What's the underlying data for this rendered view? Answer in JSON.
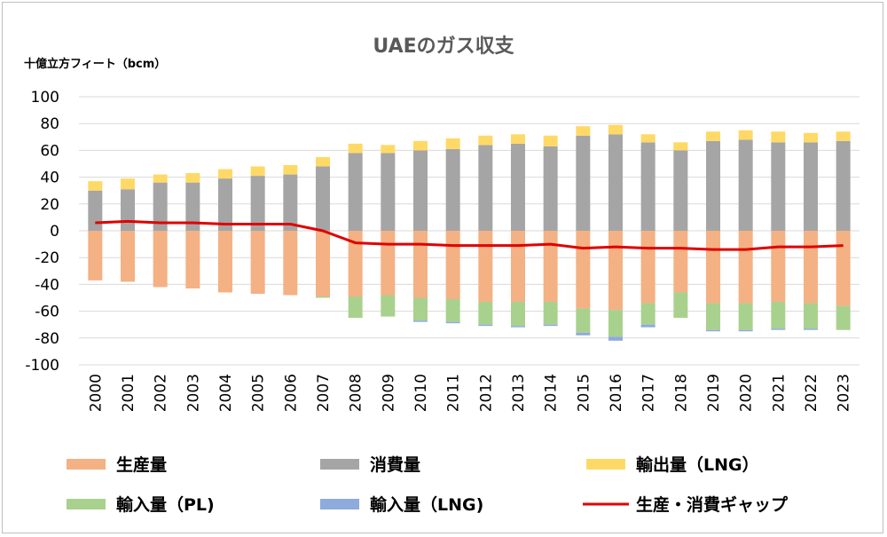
{
  "chart_data": {
    "type": "bar",
    "title": "UAEのガス収支",
    "ylabel": "十億立方フィート（bcm）",
    "xlabel": "",
    "ylim": [
      -100,
      100
    ],
    "yticks": [
      100,
      80,
      60,
      40,
      20,
      0,
      -20,
      -40,
      -60,
      -80,
      -100
    ],
    "grid": true,
    "legend_position": "bottom",
    "categories": [
      "2000",
      "2001",
      "2002",
      "2003",
      "2004",
      "2005",
      "2006",
      "2007",
      "2008",
      "2009",
      "2010",
      "2011",
      "2012",
      "2013",
      "2014",
      "2015",
      "2016",
      "2017",
      "2018",
      "2019",
      "2020",
      "2021",
      "2022",
      "2023"
    ],
    "series": [
      {
        "name": "生産量",
        "color": "#F4B183",
        "values": [
          -37,
          -38,
          -42,
          -43,
          -46,
          -47,
          -48,
          -49,
          -49,
          -48,
          -50,
          -51,
          -53,
          -53,
          -53,
          -58,
          -59,
          -54,
          -46,
          -54,
          -54,
          -53,
          -54,
          -56
        ]
      },
      {
        "name": "消費量",
        "color": "#A5A5A5",
        "values": [
          30,
          31,
          36,
          36,
          39,
          41,
          42,
          48,
          58,
          58,
          60,
          61,
          64,
          65,
          63,
          71,
          72,
          66,
          60,
          67,
          68,
          66,
          66,
          67
        ]
      },
      {
        "name": "輸出量（LNG）",
        "color": "#FFD966",
        "values": [
          7,
          8,
          6,
          7,
          7,
          7,
          7,
          7,
          7,
          6,
          7,
          8,
          7,
          7,
          8,
          7,
          7,
          6,
          6,
          7,
          7,
          8,
          7,
          7
        ]
      },
      {
        "name": "輸入量（PL)",
        "color": "#A9D18E",
        "values": [
          0,
          0,
          0,
          0,
          0,
          0,
          0,
          -1,
          -16,
          -16,
          -17,
          -17,
          -17,
          -18,
          -17,
          -18,
          -20,
          -16,
          -19,
          -20,
          -20,
          -20,
          -19,
          -18
        ]
      },
      {
        "name": "輸入量（LNG)",
        "color": "#8FAADC",
        "values": [
          0,
          0,
          0,
          0,
          0,
          0,
          0,
          0,
          0,
          0,
          -1,
          -1,
          -1,
          -1,
          -1,
          -2,
          -3,
          -2,
          0,
          -1,
          -1,
          -1,
          -1,
          0
        ]
      },
      {
        "name": "生産・消費ギャップ",
        "color": "#E00000",
        "type": "line",
        "values": [
          6,
          7,
          6,
          6,
          5,
          5,
          5,
          0,
          -9,
          -10,
          -10,
          -11,
          -11,
          -11,
          -10,
          -13,
          -12,
          -13,
          -13,
          -14,
          -14,
          -12,
          -12,
          -11
        ]
      }
    ]
  }
}
